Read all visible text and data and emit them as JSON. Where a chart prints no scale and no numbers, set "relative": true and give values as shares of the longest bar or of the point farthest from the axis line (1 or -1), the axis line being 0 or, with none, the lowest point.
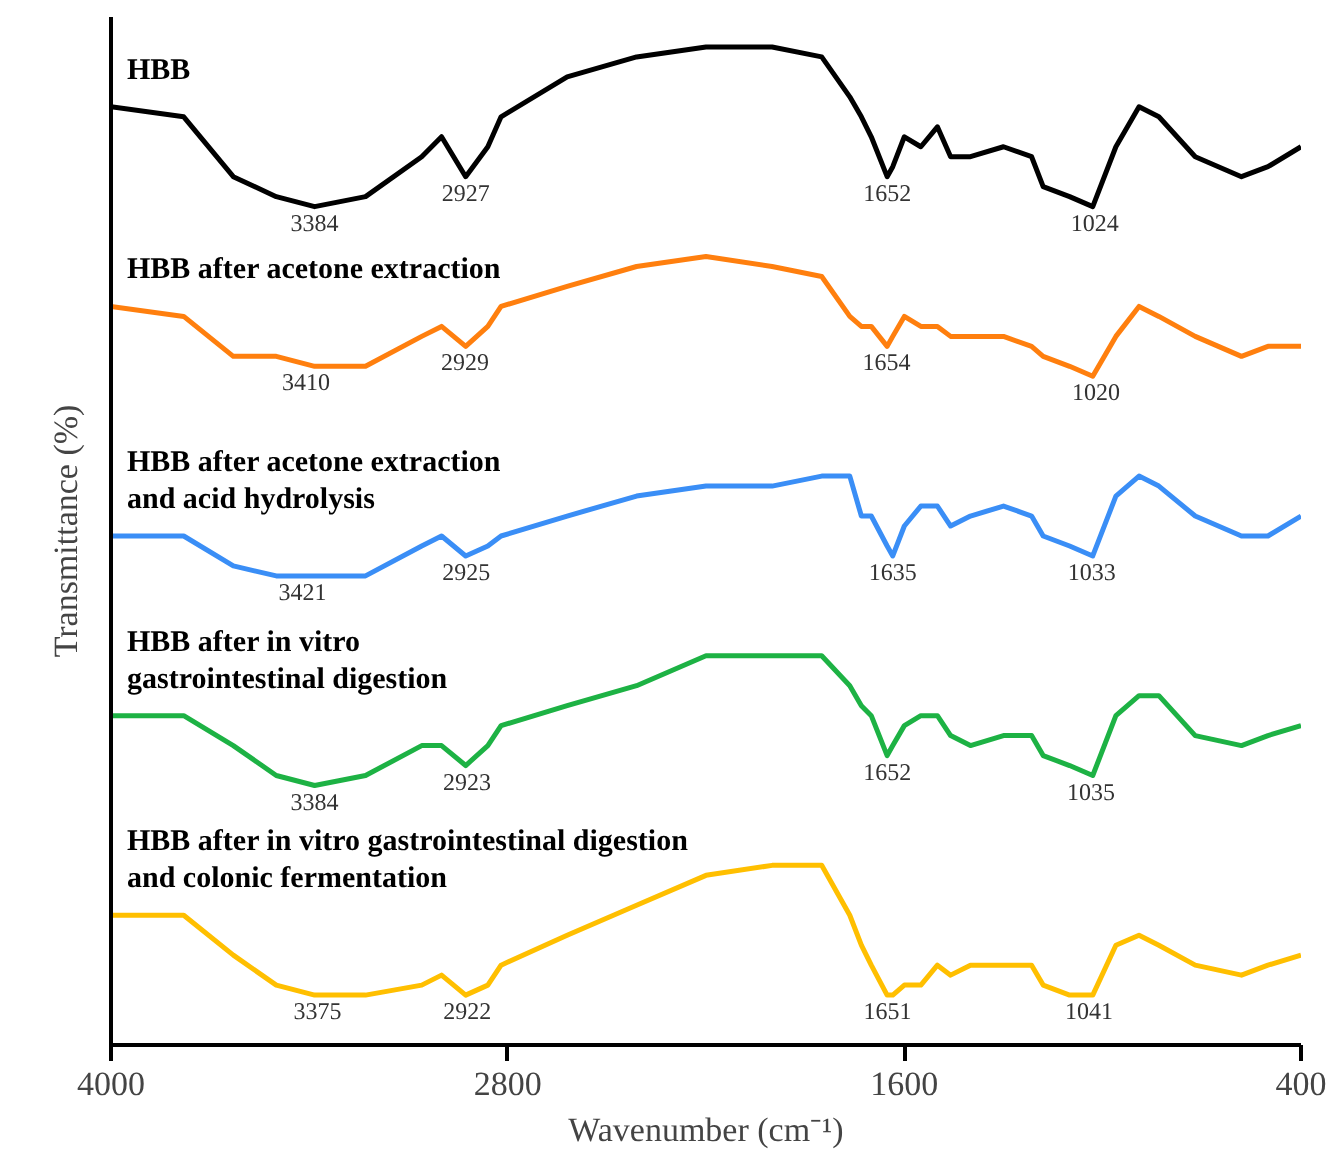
{
  "chart_data": {
    "type": "line",
    "relative": true,
    "xlabel": "Wavenumber (cm⁻¹)",
    "ylabel": "Transmittance (%)",
    "xlim": [
      4000,
      400
    ],
    "xticks": [
      4000,
      2800,
      1600,
      400
    ],
    "grid": false,
    "marker": "none",
    "line_style": "solid",
    "x": [
      4000,
      3780,
      3630,
      3500,
      3384,
      3230,
      3060,
      3000,
      2927,
      2860,
      2820,
      2620,
      2410,
      2200,
      2000,
      1850,
      1765,
      1730,
      1700,
      1652,
      1635,
      1600,
      1550,
      1500,
      1460,
      1400,
      1300,
      1215,
      1180,
      1100,
      1030,
      960,
      890,
      830,
      720,
      580,
      500,
      400
    ],
    "series": [
      {
        "name": "HBB",
        "color": "#000000",
        "values": [
          0.94,
          0.93,
          0.87,
          0.85,
          0.84,
          0.85,
          0.89,
          0.91,
          0.87,
          0.9,
          0.93,
          0.97,
          0.99,
          1.0,
          1.0,
          0.99,
          0.95,
          0.93,
          0.91,
          0.87,
          0.88,
          0.91,
          0.9,
          0.92,
          0.89,
          0.89,
          0.9,
          0.89,
          0.86,
          0.85,
          0.84,
          0.9,
          0.94,
          0.93,
          0.89,
          0.87,
          0.88,
          0.9
        ]
      },
      {
        "name": "HBB  after acetone extraction",
        "color": "#ff7f0e",
        "values": [
          0.74,
          0.73,
          0.69,
          0.69,
          0.68,
          0.68,
          0.71,
          0.72,
          0.7,
          0.72,
          0.74,
          0.76,
          0.78,
          0.79,
          0.78,
          0.77,
          0.73,
          0.72,
          0.72,
          0.7,
          0.71,
          0.73,
          0.72,
          0.72,
          0.71,
          0.71,
          0.71,
          0.7,
          0.69,
          0.68,
          0.67,
          0.71,
          0.74,
          0.73,
          0.71,
          0.69,
          0.7,
          0.7
        ]
      },
      {
        "name": "HBB  after acetone extraction\n      and acid hydrolysis",
        "color": "#3a8ef6",
        "values": [
          0.51,
          0.51,
          0.48,
          0.47,
          0.47,
          0.47,
          0.5,
          0.51,
          0.49,
          0.5,
          0.51,
          0.53,
          0.55,
          0.56,
          0.56,
          0.57,
          0.57,
          0.53,
          0.53,
          0.5,
          0.49,
          0.52,
          0.54,
          0.54,
          0.52,
          0.53,
          0.54,
          0.53,
          0.51,
          0.5,
          0.49,
          0.55,
          0.57,
          0.56,
          0.53,
          0.51,
          0.51,
          0.53
        ]
      },
      {
        "name": "HBB  after in vitro\ngastrointestinal digestion",
        "color": "#1db244",
        "values": [
          0.33,
          0.33,
          0.3,
          0.27,
          0.26,
          0.27,
          0.3,
          0.3,
          0.28,
          0.3,
          0.32,
          0.34,
          0.36,
          0.39,
          0.39,
          0.39,
          0.36,
          0.34,
          0.33,
          0.29,
          0.3,
          0.32,
          0.33,
          0.33,
          0.31,
          0.3,
          0.31,
          0.31,
          0.29,
          0.28,
          0.27,
          0.33,
          0.35,
          0.35,
          0.31,
          0.3,
          0.31,
          0.32
        ]
      },
      {
        "name": "HBB  after in vitro gastrointestinal digestion\n                     and colonic fermentation",
        "color": "#ffbf00",
        "values": [
          0.13,
          0.13,
          0.09,
          0.06,
          0.05,
          0.05,
          0.06,
          0.07,
          0.05,
          0.06,
          0.08,
          0.11,
          0.14,
          0.17,
          0.18,
          0.18,
          0.13,
          0.1,
          0.08,
          0.05,
          0.05,
          0.06,
          0.06,
          0.08,
          0.07,
          0.08,
          0.08,
          0.08,
          0.06,
          0.05,
          0.05,
          0.1,
          0.11,
          0.1,
          0.08,
          0.07,
          0.08,
          0.09
        ]
      }
    ],
    "annotations": [
      {
        "text": "3384",
        "x": 3384,
        "y": 0.84
      },
      {
        "text": "2927",
        "x": 2927,
        "y": 0.87
      },
      {
        "text": "1652",
        "x": 1652,
        "y": 0.87
      },
      {
        "text": "1024",
        "x": 1024,
        "y": 0.84
      },
      {
        "text": "3410",
        "x": 3410,
        "y": 0.68
      },
      {
        "text": "2929",
        "x": 2929,
        "y": 0.7
      },
      {
        "text": "1654",
        "x": 1654,
        "y": 0.7
      },
      {
        "text": "1020",
        "x": 1020,
        "y": 0.67
      },
      {
        "text": "3421",
        "x": 3421,
        "y": 0.47
      },
      {
        "text": "2925",
        "x": 2925,
        "y": 0.49
      },
      {
        "text": "1635",
        "x": 1635,
        "y": 0.49
      },
      {
        "text": "1033",
        "x": 1033,
        "y": 0.49
      },
      {
        "text": "3384",
        "x": 3384,
        "y": 0.26
      },
      {
        "text": "2923",
        "x": 2923,
        "y": 0.28
      },
      {
        "text": "1652",
        "x": 1652,
        "y": 0.29
      },
      {
        "text": "1035",
        "x": 1035,
        "y": 0.27
      },
      {
        "text": "3375",
        "x": 3375,
        "y": 0.05
      },
      {
        "text": "2922",
        "x": 2922,
        "y": 0.05
      },
      {
        "text": "1651",
        "x": 1651,
        "y": 0.05
      },
      {
        "text": "1041",
        "x": 1041,
        "y": 0.05
      }
    ]
  }
}
